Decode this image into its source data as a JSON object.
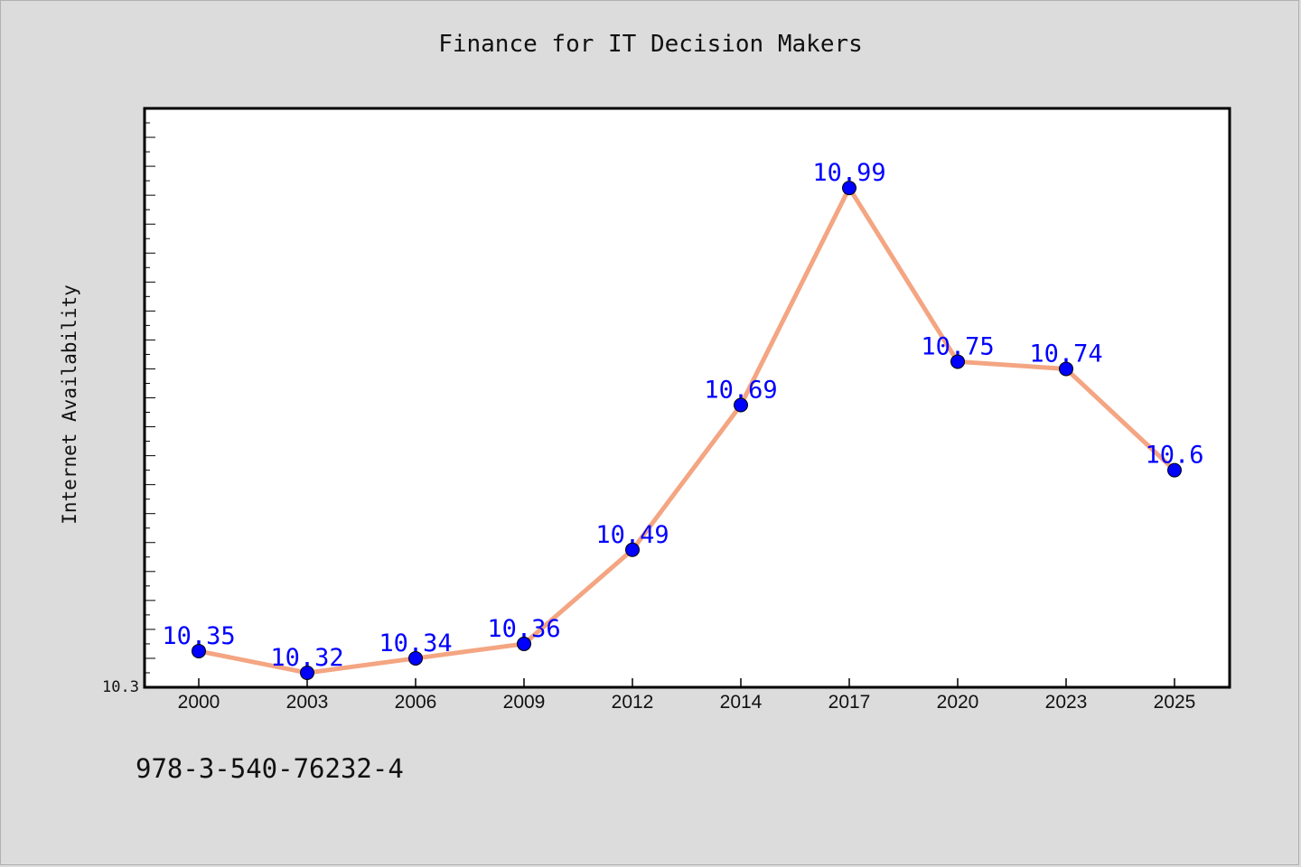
{
  "chart_data": {
    "type": "line",
    "title": "Finance for IT Decision Makers",
    "xlabel": "",
    "ylabel": "Internet Availability",
    "categories": [
      "2000",
      "2003",
      "2006",
      "2009",
      "2012",
      "2014",
      "2017",
      "2020",
      "2023",
      "2025"
    ],
    "series": [
      {
        "values": [
          10.35,
          10.32,
          10.34,
          10.36,
          10.49,
          10.69,
          10.99,
          10.75,
          10.74,
          10.6
        ],
        "labels": [
          "10.35",
          "10.32",
          "10.34",
          "10.36",
          "10.49",
          "10.69",
          "10.99",
          "10.75",
          "10.74",
          "10.6"
        ]
      }
    ],
    "ylim": [
      10.3,
      11.1
    ],
    "y_tick_labels": [
      "10.3"
    ],
    "grid": false,
    "legend": "none",
    "colors": {
      "line": "#f4a582",
      "marker": "#0000ff",
      "label": "#0000ff",
      "plot_bg": "#ffffff",
      "page_bg": "#dcdcdc"
    }
  },
  "footnote": "978-3-540-76232-4"
}
